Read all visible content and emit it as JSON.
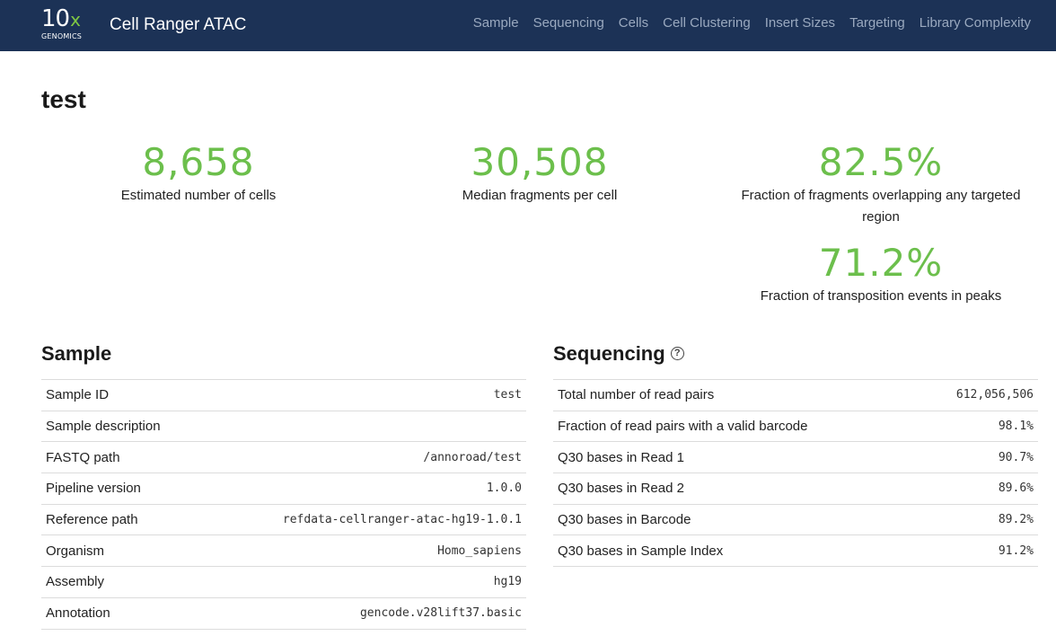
{
  "header": {
    "logo_mark": "10",
    "logo_x": "x",
    "logo_word": "GENOMICS",
    "app_title": "Cell Ranger ATAC",
    "nav": [
      {
        "label": "Sample"
      },
      {
        "label": "Sequencing"
      },
      {
        "label": "Cells"
      },
      {
        "label": "Cell Clustering"
      },
      {
        "label": "Insert Sizes"
      },
      {
        "label": "Targeting"
      },
      {
        "label": "Library Complexity"
      }
    ]
  },
  "page": {
    "sample_name": "test"
  },
  "metrics": [
    {
      "value": "8,658",
      "label": "Estimated number of cells"
    },
    {
      "value": "30,508",
      "label": "Median fragments per cell"
    },
    {
      "value": "82.5%",
      "label": "Fraction of fragments overlapping any targeted region"
    },
    {
      "value": "71.2%",
      "label": "Fraction of transposition events in peaks"
    }
  ],
  "sample_section": {
    "title": "Sample",
    "rows": [
      {
        "label": "Sample ID",
        "value": "test"
      },
      {
        "label": "Sample description",
        "value": ""
      },
      {
        "label": "FASTQ path",
        "value": "/annoroad/test"
      },
      {
        "label": "Pipeline version",
        "value": "1.0.0"
      },
      {
        "label": "Reference path",
        "value": "refdata-cellranger-atac-hg19-1.0.1"
      },
      {
        "label": "Organism",
        "value": "Homo_sapiens"
      },
      {
        "label": "Assembly",
        "value": "hg19"
      },
      {
        "label": "Annotation",
        "value": "gencode.v28lift37.basic"
      }
    ]
  },
  "sequencing_section": {
    "title": "Sequencing",
    "help_icon": "?",
    "rows": [
      {
        "label": "Total number of read pairs",
        "value": "612,056,506"
      },
      {
        "label": "Fraction of read pairs with a valid barcode",
        "value": "98.1%"
      },
      {
        "label": "Q30 bases in Read 1",
        "value": "90.7%"
      },
      {
        "label": "Q30 bases in Read 2",
        "value": "89.6%"
      },
      {
        "label": "Q30 bases in Barcode",
        "value": "89.2%"
      },
      {
        "label": "Q30 bases in Sample Index",
        "value": "91.2%"
      }
    ]
  },
  "colors": {
    "header_bg": "#1c3256",
    "metric_green": "#6cbf4c",
    "nav_text": "#9aa9bf"
  }
}
